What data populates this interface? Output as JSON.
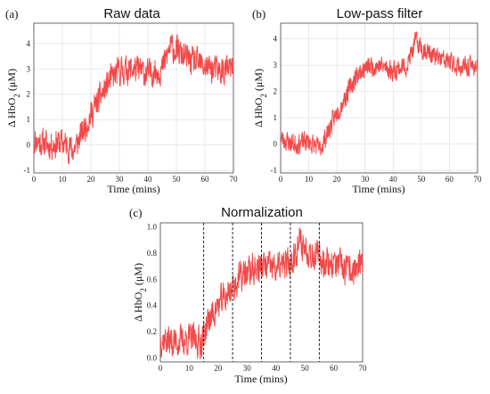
{
  "colors": {
    "series": "#f24a4a",
    "grid": "#dcdcdc",
    "frame": "#444444"
  },
  "chart_data": [
    {
      "type": "line",
      "panel_label": "(a)",
      "title": "Raw data",
      "xlabel": "Time (mins)",
      "ylabel_parts": {
        "pre": "Δ HbO",
        "sub": "2",
        "post": " (μM)"
      },
      "xlim": [
        0,
        70
      ],
      "ylim": [
        -1.1,
        4.8
      ],
      "xticks": [
        0,
        10,
        20,
        30,
        40,
        50,
        60,
        70
      ],
      "yticks": [
        -1,
        0,
        1,
        2,
        3,
        4
      ],
      "grid": true,
      "anchors": [
        [
          0,
          0.2
        ],
        [
          5,
          0.0
        ],
        [
          10,
          0.1
        ],
        [
          14,
          -0.2
        ],
        [
          17,
          0.5
        ],
        [
          20,
          1.2
        ],
        [
          23,
          1.8
        ],
        [
          27,
          2.6
        ],
        [
          30,
          2.9
        ],
        [
          35,
          3.0
        ],
        [
          40,
          2.8
        ],
        [
          45,
          3.0
        ],
        [
          48,
          3.9
        ],
        [
          50,
          3.7
        ],
        [
          55,
          3.3
        ],
        [
          60,
          3.1
        ],
        [
          65,
          2.9
        ],
        [
          70,
          3.0
        ]
      ],
      "noise": 0.55,
      "seed": 11
    },
    {
      "type": "line",
      "panel_label": "(b)",
      "title": "Low-pass filter",
      "xlabel": "Time (mins)",
      "ylabel_parts": {
        "pre": "Δ HbO",
        "sub": "2",
        "post": " (μM)"
      },
      "xlim": [
        0,
        70
      ],
      "ylim": [
        -1.1,
        4.6
      ],
      "xticks": [
        0,
        10,
        20,
        30,
        40,
        50,
        60,
        70
      ],
      "yticks": [
        -1,
        0,
        1,
        2,
        3,
        4
      ],
      "grid": true,
      "anchors": [
        [
          0,
          0.2
        ],
        [
          5,
          0.0
        ],
        [
          10,
          0.1
        ],
        [
          14,
          -0.2
        ],
        [
          17,
          0.5
        ],
        [
          20,
          1.2
        ],
        [
          23,
          1.8
        ],
        [
          27,
          2.6
        ],
        [
          30,
          2.9
        ],
        [
          35,
          3.0
        ],
        [
          40,
          2.8
        ],
        [
          45,
          3.0
        ],
        [
          48,
          3.9
        ],
        [
          50,
          3.7
        ],
        [
          55,
          3.3
        ],
        [
          60,
          3.1
        ],
        [
          65,
          2.9
        ],
        [
          70,
          3.0
        ]
      ],
      "noise": 0.38,
      "seed": 23
    },
    {
      "type": "line",
      "panel_label": "(c)",
      "title": "Normalization",
      "xlabel": "Time (mins)",
      "ylabel_parts": {
        "pre": "Δ HbO",
        "sub": "2",
        "post": " (μM)"
      },
      "xlim": [
        0,
        70
      ],
      "ylim": [
        -0.03,
        1.03
      ],
      "xticks": [
        0,
        10,
        20,
        30,
        40,
        50,
        60,
        70
      ],
      "yticks": [
        0.0,
        0.2,
        0.4,
        0.6,
        0.8,
        1.0
      ],
      "ytick_labels": [
        "0.0",
        "0.2",
        "0.4",
        "0.6",
        "0.8",
        "1.0"
      ],
      "grid": false,
      "vlines": [
        15,
        25,
        35,
        45,
        55
      ],
      "anchors": [
        [
          0,
          0.15
        ],
        [
          5,
          0.12
        ],
        [
          10,
          0.15
        ],
        [
          14,
          0.12
        ],
        [
          17,
          0.3
        ],
        [
          20,
          0.4
        ],
        [
          23,
          0.48
        ],
        [
          27,
          0.6
        ],
        [
          30,
          0.65
        ],
        [
          35,
          0.7
        ],
        [
          40,
          0.68
        ],
        [
          45,
          0.72
        ],
        [
          48,
          0.88
        ],
        [
          50,
          0.85
        ],
        [
          55,
          0.76
        ],
        [
          60,
          0.72
        ],
        [
          65,
          0.66
        ],
        [
          70,
          0.7
        ]
      ],
      "noise": 0.12,
      "seed": 37
    }
  ]
}
